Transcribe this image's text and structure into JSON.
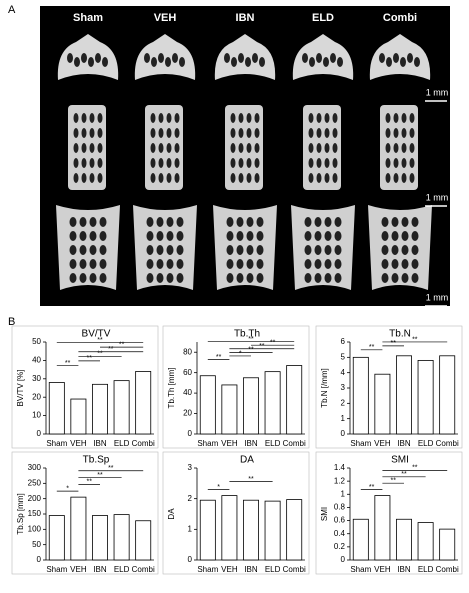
{
  "panel_a": {
    "label": "A",
    "columns": [
      "Sham",
      "VEH",
      "IBN",
      "ELD",
      "Combi"
    ],
    "scale_bars": [
      "1 mm",
      "1 mm",
      "1 mm"
    ]
  },
  "panel_b": {
    "label": "B"
  },
  "chart_data": [
    {
      "type": "bar",
      "title": "BV/TV",
      "ylabel": "BV/TV [%]",
      "categories": [
        "Sham",
        "VEH",
        "IBN",
        "ELD",
        "Combi"
      ],
      "values": [
        28,
        19,
        27,
        29,
        34
      ],
      "ylim": [
        0,
        50
      ],
      "yticks": [
        0,
        10,
        20,
        30,
        40,
        50
      ],
      "annotations": [
        {
          "label": "**",
          "between": [
            "Sham",
            "VEH"
          ]
        },
        {
          "label": "**",
          "between": [
            "VEH",
            "IBN"
          ]
        },
        {
          "label": "**",
          "between": [
            "VEH",
            "ELD"
          ]
        },
        {
          "label": "**",
          "between": [
            "VEH",
            "Combi"
          ]
        },
        {
          "label": "**",
          "between": [
            "IBN",
            "Combi"
          ]
        },
        {
          "label": "**",
          "between": [
            "Sham",
            "Combi"
          ]
        }
      ]
    },
    {
      "type": "bar",
      "title": "Tb.Th",
      "ylabel": "Tb.Th [mm]",
      "categories": [
        "Sham",
        "VEH",
        "IBN",
        "ELD",
        "Combi"
      ],
      "values": [
        57,
        48,
        55,
        61,
        67
      ],
      "ylim": [
        0,
        90
      ],
      "yticks": [
        0,
        20,
        40,
        60,
        80
      ],
      "annotations": [
        {
          "label": "**",
          "between": [
            "Sham",
            "VEH"
          ]
        },
        {
          "label": "*",
          "between": [
            "VEH",
            "IBN"
          ]
        },
        {
          "label": "**",
          "between": [
            "VEH",
            "ELD"
          ]
        },
        {
          "label": "**",
          "between": [
            "VEH",
            "Combi"
          ]
        },
        {
          "label": "**",
          "between": [
            "IBN",
            "Combi"
          ]
        },
        {
          "label": "**",
          "between": [
            "Sham",
            "Combi"
          ]
        }
      ]
    },
    {
      "type": "bar",
      "title": "Tb.N",
      "ylabel": "Tb.N [/mm]",
      "categories": [
        "Sham",
        "VEH",
        "IBN",
        "ELD",
        "Combi"
      ],
      "values": [
        5.0,
        3.9,
        5.1,
        4.8,
        5.1
      ],
      "ylim": [
        0,
        6
      ],
      "yticks": [
        0,
        1,
        2,
        3,
        4,
        5,
        6
      ],
      "annotations": [
        {
          "label": "**",
          "between": [
            "Sham",
            "VEH"
          ]
        },
        {
          "label": "**",
          "between": [
            "VEH",
            "IBN"
          ]
        },
        {
          "label": "**",
          "between": [
            "VEH",
            "Combi"
          ]
        }
      ]
    },
    {
      "type": "bar",
      "title": "Tb.Sp",
      "ylabel": "Tb.Sp [mm]",
      "categories": [
        "Sham",
        "VEH",
        "IBN",
        "ELD",
        "Combi"
      ],
      "values": [
        145,
        205,
        145,
        148,
        128
      ],
      "ylim": [
        0,
        300
      ],
      "yticks": [
        0,
        50,
        100,
        150,
        200,
        250,
        300
      ],
      "annotations": [
        {
          "label": "*",
          "between": [
            "Sham",
            "VEH"
          ]
        },
        {
          "label": "**",
          "between": [
            "VEH",
            "IBN"
          ]
        },
        {
          "label": "**",
          "between": [
            "VEH",
            "ELD"
          ]
        },
        {
          "label": "**",
          "between": [
            "VEH",
            "Combi"
          ]
        }
      ]
    },
    {
      "type": "bar",
      "title": "DA",
      "ylabel": "DA",
      "categories": [
        "Sham",
        "VEH",
        "IBN",
        "ELD",
        "Combi"
      ],
      "values": [
        1.95,
        2.1,
        1.95,
        1.92,
        1.97
      ],
      "ylim": [
        0,
        3
      ],
      "yticks": [
        0,
        1,
        2,
        3
      ],
      "annotations": [
        {
          "label": "*",
          "between": [
            "Sham",
            "VEH"
          ]
        },
        {
          "label": "**",
          "between": [
            "VEH",
            "ELD"
          ]
        }
      ]
    },
    {
      "type": "bar",
      "title": "SMI",
      "ylabel": "SMI",
      "categories": [
        "Sham",
        "VEH",
        "IBN",
        "ELD",
        "Combi"
      ],
      "values": [
        0.62,
        0.98,
        0.62,
        0.57,
        0.47
      ],
      "ylim": [
        0,
        1.4
      ],
      "yticks": [
        0,
        0.2,
        0.4,
        0.6,
        0.8,
        1,
        1.2,
        1.4
      ],
      "annotations": [
        {
          "label": "**",
          "between": [
            "Sham",
            "VEH"
          ]
        },
        {
          "label": "**",
          "between": [
            "VEH",
            "IBN"
          ]
        },
        {
          "label": "**",
          "between": [
            "VEH",
            "ELD"
          ]
        },
        {
          "label": "**",
          "between": [
            "VEH",
            "Combi"
          ]
        }
      ]
    }
  ]
}
